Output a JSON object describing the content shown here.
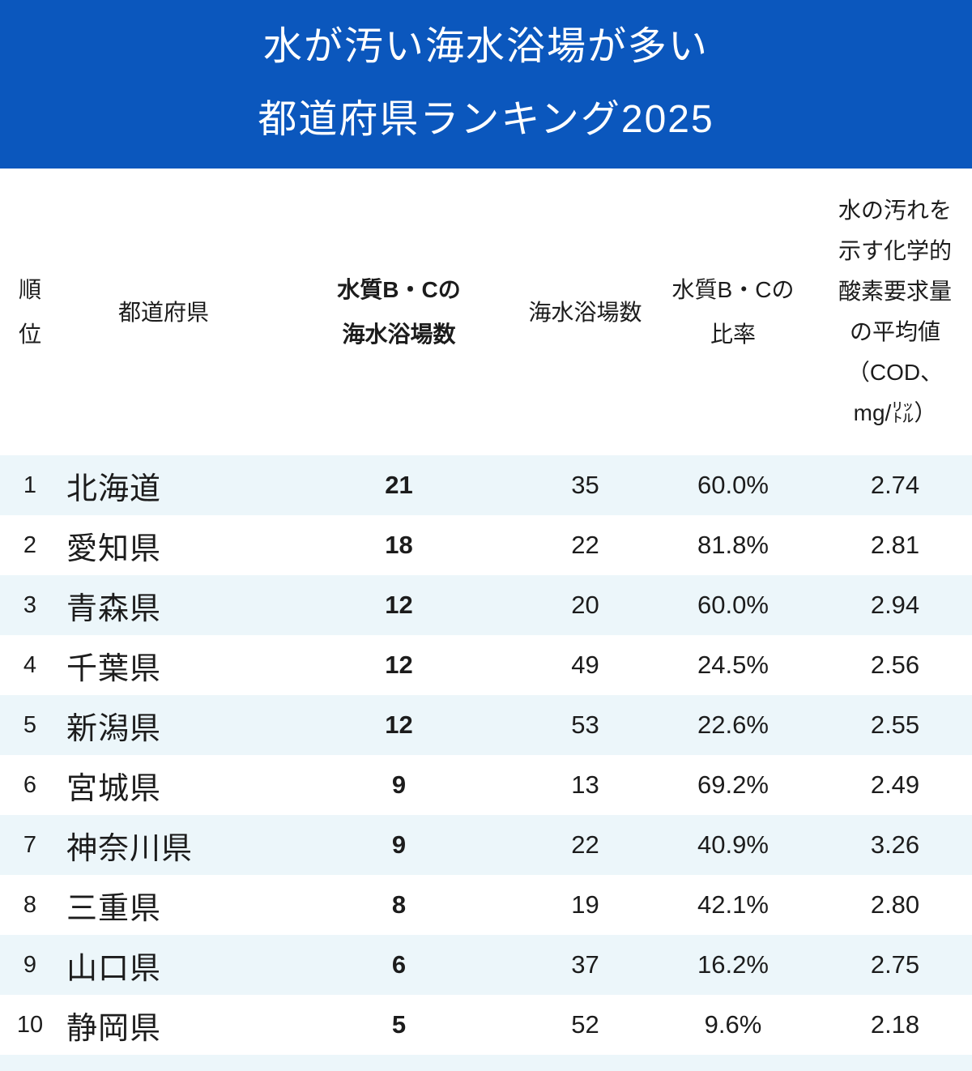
{
  "banner": {
    "line1": "水が汚い海水浴場が多い",
    "line2": "都道府県ランキング2025"
  },
  "headers": {
    "rank": [
      "順",
      "位"
    ],
    "prefecture": "都道府県",
    "bc_count": [
      "水質B・Cの",
      "海水浴場数"
    ],
    "total": "海水浴場数",
    "ratio": [
      "水質B・Cの",
      "比率"
    ],
    "cod": [
      "水の汚れを",
      "示す化学的",
      "酸素要求量",
      "の平均値",
      "（COD、",
      "mg/㍑）"
    ]
  },
  "rows": [
    {
      "rank": "1",
      "pref": "北海道",
      "bc": "21",
      "total": "35",
      "ratio": "60.0%",
      "cod": "2.74"
    },
    {
      "rank": "2",
      "pref": "愛知県",
      "bc": "18",
      "total": "22",
      "ratio": "81.8%",
      "cod": "2.81"
    },
    {
      "rank": "3",
      "pref": "青森県",
      "bc": "12",
      "total": "20",
      "ratio": "60.0%",
      "cod": "2.94"
    },
    {
      "rank": "4",
      "pref": "千葉県",
      "bc": "12",
      "total": "49",
      "ratio": "24.5%",
      "cod": "2.56"
    },
    {
      "rank": "5",
      "pref": "新潟県",
      "bc": "12",
      "total": "53",
      "ratio": "22.6%",
      "cod": "2.55"
    },
    {
      "rank": "6",
      "pref": "宮城県",
      "bc": "9",
      "total": "13",
      "ratio": "69.2%",
      "cod": "2.49"
    },
    {
      "rank": "7",
      "pref": "神奈川県",
      "bc": "9",
      "total": "22",
      "ratio": "40.9%",
      "cod": "3.26"
    },
    {
      "rank": "8",
      "pref": "三重県",
      "bc": "8",
      "total": "19",
      "ratio": "42.1%",
      "cod": "2.80"
    },
    {
      "rank": "9",
      "pref": "山口県",
      "bc": "6",
      "total": "37",
      "ratio": "16.2%",
      "cod": "2.75"
    },
    {
      "rank": "10",
      "pref": "静岡県",
      "bc": "5",
      "total": "52",
      "ratio": "9.6%",
      "cod": "2.18"
    }
  ],
  "colors": {
    "banner_bg": "#0b57bd",
    "banner_fg": "#ffffff",
    "stripe_bg": "#ecf6fa",
    "text": "#1c1c1c"
  },
  "chart_data": {
    "type": "table",
    "title": "水が汚い海水浴場が多い都道府県ランキング2025",
    "columns": [
      "順位",
      "都道府県",
      "水質B・Cの海水浴場数",
      "海水浴場数",
      "水質B・Cの比率",
      "水の汚れを示す化学的酸素要求量の平均値（COD、mg/㍑）"
    ],
    "rows": [
      [
        1,
        "北海道",
        21,
        35,
        "60.0%",
        2.74
      ],
      [
        2,
        "愛知県",
        18,
        22,
        "81.8%",
        2.81
      ],
      [
        3,
        "青森県",
        12,
        20,
        "60.0%",
        2.94
      ],
      [
        4,
        "千葉県",
        12,
        49,
        "24.5%",
        2.56
      ],
      [
        5,
        "新潟県",
        12,
        53,
        "22.6%",
        2.55
      ],
      [
        6,
        "宮城県",
        9,
        13,
        "69.2%",
        2.49
      ],
      [
        7,
        "神奈川県",
        9,
        22,
        "40.9%",
        3.26
      ],
      [
        8,
        "三重県",
        8,
        19,
        "42.1%",
        2.8
      ],
      [
        9,
        "山口県",
        6,
        37,
        "16.2%",
        2.75
      ],
      [
        10,
        "静岡県",
        5,
        52,
        "9.6%",
        2.18
      ]
    ],
    "layout_hints": {
      "striped_rows": "odd rows light blue #ecf6fa",
      "bold_column": "水質B・Cの海水浴場数",
      "partial_11th_row_stripe_visible_at_bottom": true
    }
  }
}
